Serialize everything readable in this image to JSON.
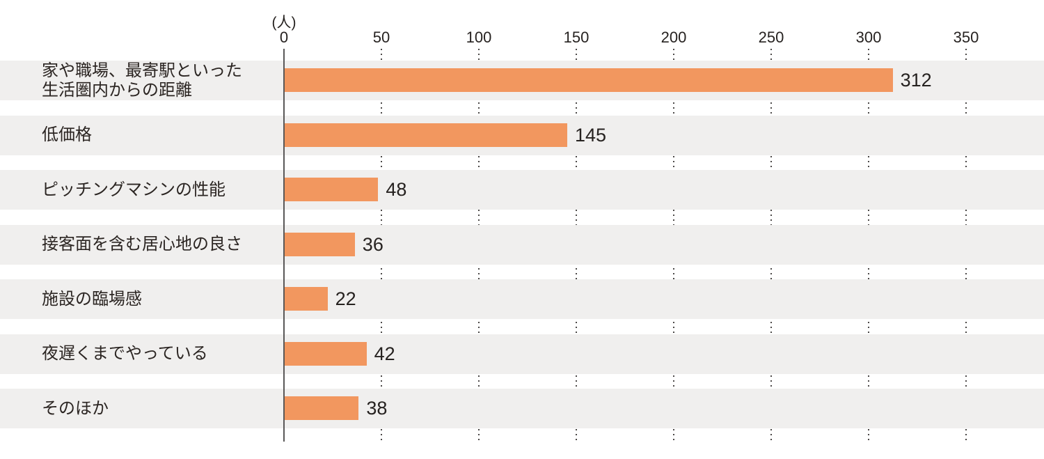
{
  "chart_data": {
    "type": "bar",
    "orientation": "horizontal",
    "unit_label": "(人)",
    "categories": [
      "家や職場、最寄駅といった\n生活圏内からの距離",
      "低価格",
      "ピッチングマシンの性能",
      "接客面を含む居心地の良さ",
      "施設の臨場感",
      "夜遅くまでやっている",
      "そのほか"
    ],
    "values": [
      312,
      145,
      48,
      36,
      22,
      42,
      38
    ],
    "xlim": [
      0,
      350
    ],
    "ticks": [
      0,
      50,
      100,
      150,
      200,
      250,
      300,
      350
    ],
    "grid": "dotted vertical lines at ticks, visible only in white gaps between row bands",
    "legend": "none",
    "colors": {
      "bar": "#F2975F",
      "row_band": "#F0EFEE",
      "text": "#262220",
      "axis_line": "#595757",
      "grid_dot": "#4C4948"
    }
  }
}
